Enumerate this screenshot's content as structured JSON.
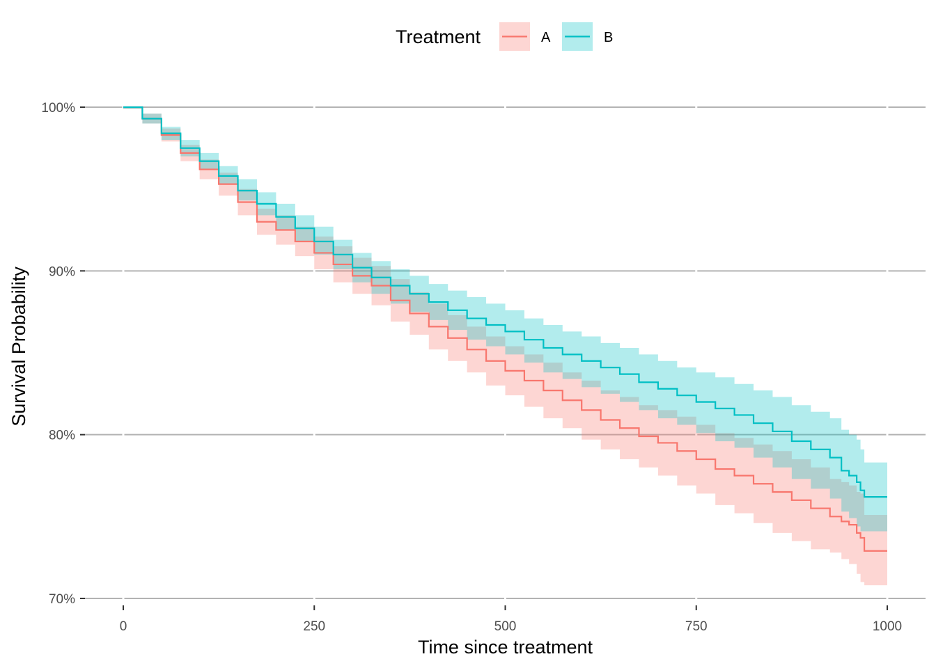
{
  "chart_data": {
    "type": "line",
    "xlabel": "Time since treatment",
    "ylabel": "Survival Probability",
    "xlim": [
      0,
      1000
    ],
    "ylim": [
      0.7,
      1.0
    ],
    "x_ticks": [
      0,
      250,
      500,
      750,
      1000
    ],
    "x_tick_labels": [
      "0",
      "250",
      "500",
      "750",
      "1000"
    ],
    "y_ticks": [
      0.7,
      0.8,
      0.9,
      1.0
    ],
    "y_tick_labels": [
      "70%",
      "80%",
      "90%",
      "100%"
    ],
    "grid": "horizontal-major",
    "legend": {
      "title": "Treatment",
      "placement": "top",
      "entries": [
        "A",
        "B"
      ]
    },
    "series": [
      {
        "name": "A",
        "color": "#F8766D",
        "x": [
          0,
          25,
          50,
          75,
          100,
          125,
          150,
          175,
          200,
          225,
          250,
          275,
          300,
          325,
          350,
          375,
          400,
          425,
          450,
          475,
          500,
          525,
          550,
          575,
          600,
          625,
          650,
          675,
          700,
          725,
          750,
          775,
          800,
          825,
          850,
          875,
          900,
          925,
          940,
          950,
          960,
          965,
          970,
          1000
        ],
        "y": [
          1.0,
          0.993,
          0.983,
          0.972,
          0.962,
          0.953,
          0.942,
          0.93,
          0.925,
          0.918,
          0.911,
          0.904,
          0.897,
          0.891,
          0.882,
          0.874,
          0.866,
          0.859,
          0.852,
          0.845,
          0.839,
          0.833,
          0.827,
          0.821,
          0.815,
          0.809,
          0.804,
          0.799,
          0.795,
          0.79,
          0.785,
          0.779,
          0.775,
          0.77,
          0.765,
          0.76,
          0.755,
          0.75,
          0.747,
          0.745,
          0.74,
          0.737,
          0.729,
          0.729
        ],
        "lower": [
          0.999,
          0.99,
          0.979,
          0.967,
          0.956,
          0.946,
          0.934,
          0.922,
          0.916,
          0.909,
          0.901,
          0.893,
          0.886,
          0.879,
          0.869,
          0.861,
          0.852,
          0.845,
          0.838,
          0.83,
          0.824,
          0.817,
          0.81,
          0.804,
          0.797,
          0.791,
          0.785,
          0.78,
          0.775,
          0.769,
          0.764,
          0.757,
          0.752,
          0.746,
          0.74,
          0.735,
          0.73,
          0.728,
          0.724,
          0.721,
          0.715,
          0.71,
          0.708,
          0.708
        ],
        "upper": [
          1.0,
          0.996,
          0.987,
          0.977,
          0.968,
          0.96,
          0.95,
          0.938,
          0.934,
          0.927,
          0.921,
          0.915,
          0.908,
          0.903,
          0.895,
          0.887,
          0.88,
          0.873,
          0.866,
          0.86,
          0.854,
          0.849,
          0.844,
          0.838,
          0.833,
          0.827,
          0.823,
          0.818,
          0.815,
          0.811,
          0.806,
          0.801,
          0.798,
          0.794,
          0.79,
          0.785,
          0.78,
          0.773,
          0.771,
          0.769,
          0.765,
          0.764,
          0.751,
          0.751
        ]
      },
      {
        "name": "B",
        "color": "#00BFC4",
        "x": [
          0,
          25,
          50,
          75,
          100,
          125,
          150,
          175,
          200,
          225,
          250,
          275,
          300,
          325,
          350,
          375,
          400,
          425,
          450,
          475,
          500,
          525,
          550,
          575,
          600,
          625,
          650,
          675,
          700,
          725,
          750,
          775,
          800,
          825,
          850,
          875,
          900,
          925,
          940,
          950,
          960,
          965,
          970,
          1000
        ],
        "y": [
          1.0,
          0.993,
          0.984,
          0.975,
          0.967,
          0.958,
          0.949,
          0.941,
          0.933,
          0.926,
          0.918,
          0.91,
          0.902,
          0.896,
          0.891,
          0.886,
          0.881,
          0.876,
          0.871,
          0.867,
          0.863,
          0.858,
          0.853,
          0.849,
          0.845,
          0.841,
          0.837,
          0.832,
          0.828,
          0.824,
          0.82,
          0.816,
          0.812,
          0.807,
          0.802,
          0.796,
          0.791,
          0.786,
          0.778,
          0.775,
          0.771,
          0.766,
          0.762,
          0.762
        ],
        "lower": [
          0.999,
          0.99,
          0.98,
          0.97,
          0.962,
          0.953,
          0.943,
          0.934,
          0.925,
          0.918,
          0.91,
          0.901,
          0.893,
          0.886,
          0.88,
          0.875,
          0.87,
          0.864,
          0.858,
          0.854,
          0.849,
          0.844,
          0.838,
          0.834,
          0.829,
          0.825,
          0.82,
          0.815,
          0.81,
          0.806,
          0.801,
          0.796,
          0.792,
          0.786,
          0.78,
          0.773,
          0.767,
          0.761,
          0.753,
          0.749,
          0.744,
          0.741,
          0.741,
          0.741
        ],
        "upper": [
          1.0,
          0.996,
          0.988,
          0.98,
          0.972,
          0.964,
          0.956,
          0.948,
          0.941,
          0.934,
          0.927,
          0.919,
          0.911,
          0.906,
          0.901,
          0.897,
          0.892,
          0.888,
          0.884,
          0.88,
          0.876,
          0.871,
          0.867,
          0.863,
          0.86,
          0.856,
          0.853,
          0.849,
          0.845,
          0.841,
          0.838,
          0.835,
          0.831,
          0.827,
          0.823,
          0.818,
          0.814,
          0.81,
          0.803,
          0.8,
          0.797,
          0.791,
          0.783,
          0.783
        ]
      }
    ]
  }
}
